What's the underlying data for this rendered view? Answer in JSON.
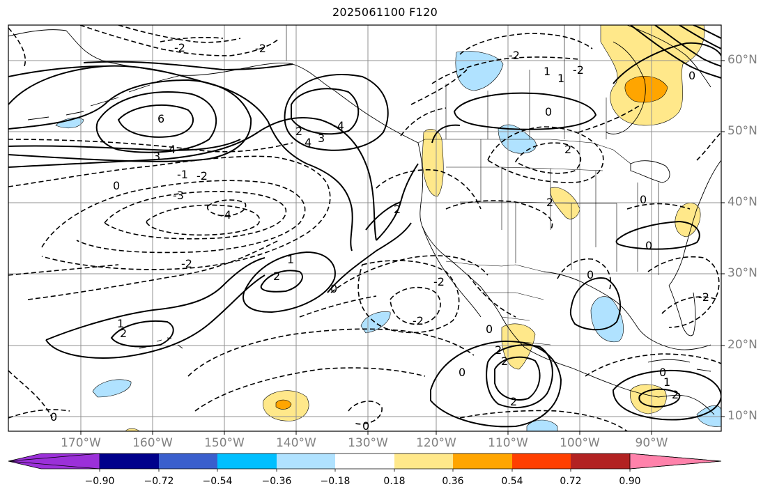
{
  "title": "2025061100 F120",
  "lon_labels": [
    "170°W",
    "160°W",
    "150°W",
    "140°W",
    "130°W",
    "120°W",
    "110°W",
    "100°W",
    "90°W"
  ],
  "lat_labels": [
    "60°N",
    "50°N",
    "40°N",
    "30°N",
    "20°N",
    "10°N"
  ],
  "colorbar": {
    "ticks": [
      "−0.90",
      "−0.72",
      "−0.54",
      "−0.36",
      "−0.18",
      "0.18",
      "0.36",
      "0.54",
      "0.72",
      "0.90"
    ],
    "colors": [
      "#9b30d9",
      "#00008b",
      "#3a5fcd",
      "#00bfff",
      "#b0e2ff",
      "#ffffff",
      "#ffe88a",
      "#ffa500",
      "#ff3f00",
      "#b22222",
      "#ff82ab"
    ]
  },
  "contour_labels": [
    "-2",
    "-2",
    "-2",
    "-4",
    "-2",
    "-2",
    "0",
    "-2",
    "2",
    "2",
    "2",
    "-1",
    "-2",
    "-3",
    "0",
    "6",
    "4",
    "3",
    "-4",
    "3",
    "2",
    "4",
    "2",
    "1",
    "2",
    "1",
    "0",
    "0",
    "0",
    "0",
    "0",
    "0",
    "0",
    "-2",
    "0",
    "2",
    "2",
    "1",
    "1",
    "2",
    "1",
    "0",
    "2",
    "0",
    "-2"
  ]
}
